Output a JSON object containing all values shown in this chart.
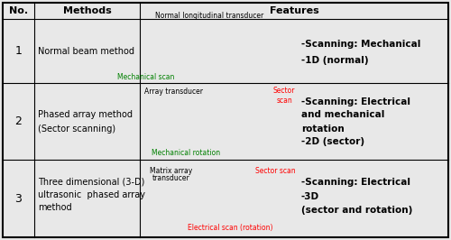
{
  "bg_color": "#e8e8e8",
  "header_bg": "#d5d5d5",
  "border_color": "#000000",
  "red_color": "#ff0000",
  "green_color": "#008000",
  "gold_color": "#FFD700",
  "header": {
    "no": "No.",
    "methods": "Methods",
    "features": "Features"
  },
  "row1": {
    "no": "1",
    "method": "Normal beam method",
    "img_label": "Normal longitudinal transducer",
    "scan_label": "Mechanical scan",
    "feat1": "-Scanning: Mechanical",
    "feat2": "-1D (normal)"
  },
  "row2": {
    "no": "2",
    "method1": "Phased array method",
    "method2": "(Sector scanning)",
    "img_label": "Array transducer",
    "scan_label": "Mechanical rotation",
    "sector_label": "Sector\nscan",
    "feat1": "-Scanning: Electrical",
    "feat2": "and mechanical",
    "feat3": "rotation",
    "feat4": "-2D (sector)"
  },
  "row3": {
    "no": "3",
    "method1": "Three dimensional (3-D)",
    "method2": "ultrasonic  phased array",
    "method3": "method",
    "img_label1": "Matrix array",
    "img_label2": "transducer",
    "sector_label": "Sector scan",
    "elec_label": "Electrical scan (rotation)",
    "feat1": "-Scanning: Electrical",
    "feat2": "-3D",
    "feat3": "(sector and rotation)"
  }
}
